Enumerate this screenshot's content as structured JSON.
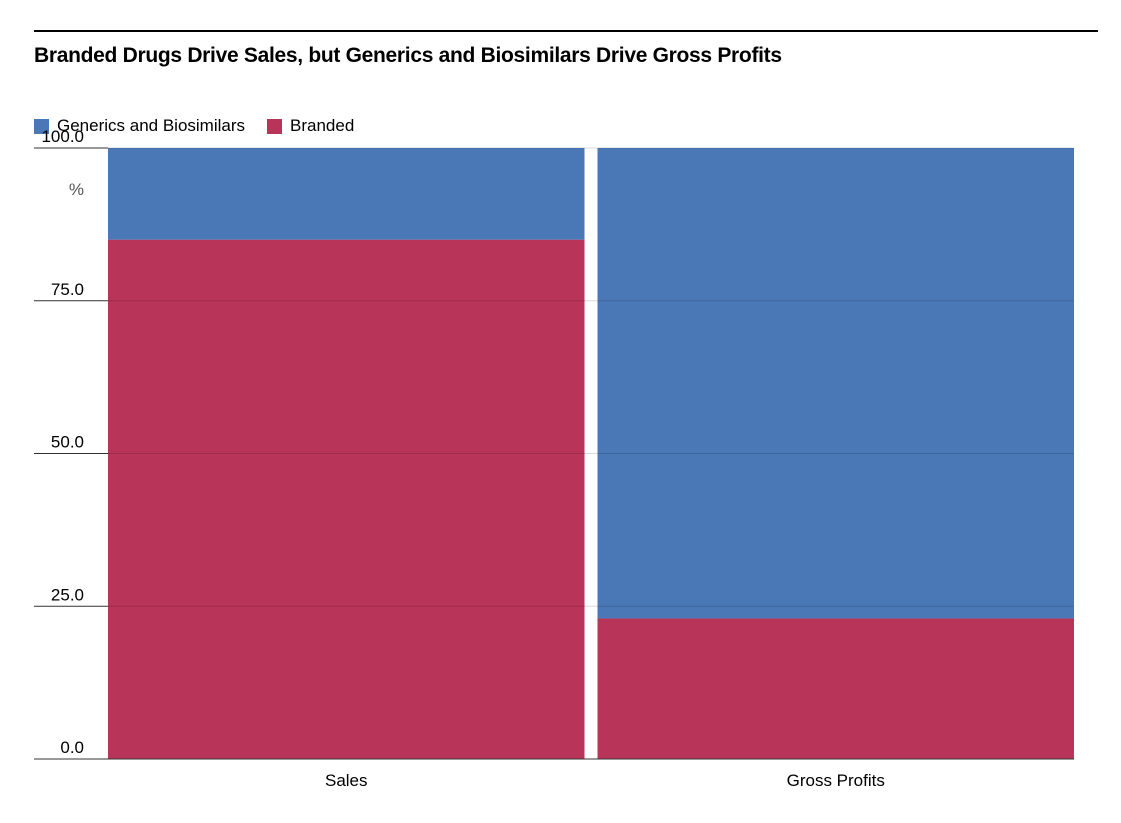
{
  "chart_data": {
    "type": "bar",
    "stacked": true,
    "normalized_percent": true,
    "title": "Branded Drugs Drive Sales, but Generics and Biosimilars Drive Gross Profits",
    "xlabel": "",
    "ylabel": "",
    "y_unit": "%",
    "categories": [
      "Sales",
      "Gross Profits"
    ],
    "category_widths": [
      0.5,
      0.5
    ],
    "series": [
      {
        "name": "Generics and Biosimilars",
        "color": "#4a78b7",
        "values": [
          15,
          77
        ]
      },
      {
        "name": "Branded",
        "color": "#b83458",
        "values": [
          85,
          23
        ]
      }
    ],
    "ylim": [
      0,
      100
    ],
    "yticks": [
      0,
      25,
      50,
      75,
      100
    ],
    "ytick_labels": [
      "0.0",
      "25.0",
      "50.0",
      "75.0",
      "100.0"
    ],
    "grid": true,
    "legend_position": "top-left"
  }
}
